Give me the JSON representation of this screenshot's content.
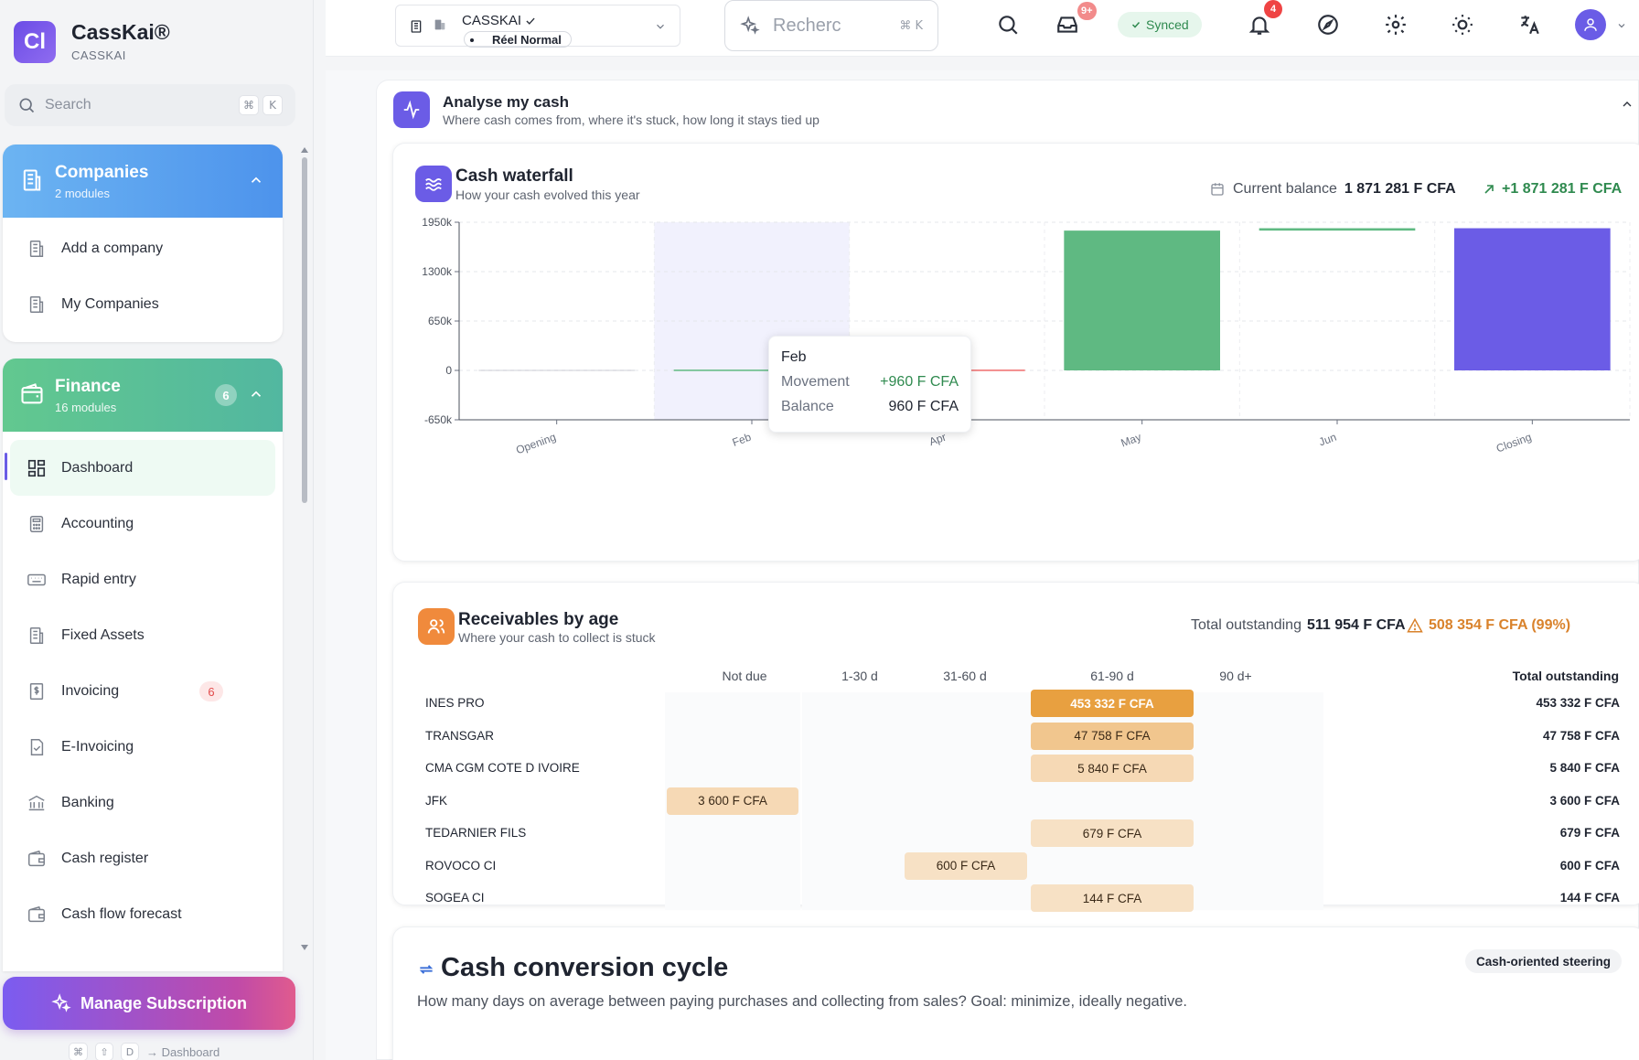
{
  "app": {
    "logo_text": "Cl",
    "title": "CassKai®",
    "subtitle": "CASSKAI"
  },
  "sidebar": {
    "search_placeholder": "Search",
    "search_keys": [
      "⌘",
      "K"
    ],
    "groups": [
      {
        "title": "Companies",
        "subtitle": "2 modules",
        "color": "#5aa7f0",
        "items": [
          {
            "label": "Add a company",
            "icon": "building-icon"
          },
          {
            "label": "My Companies",
            "icon": "building-icon"
          }
        ]
      },
      {
        "title": "Finance",
        "subtitle": "16 modules",
        "count": "6",
        "color": "#4fbf8a",
        "items": [
          {
            "label": "Dashboard",
            "icon": "dashboard-icon",
            "active": true
          },
          {
            "label": "Accounting",
            "icon": "calculator-icon"
          },
          {
            "label": "Rapid entry",
            "icon": "keyboard-icon"
          },
          {
            "label": "Fixed Assets",
            "icon": "building-icon"
          },
          {
            "label": "Invoicing",
            "icon": "invoice-icon",
            "badge": "6"
          },
          {
            "label": "E-Invoicing",
            "icon": "document-check-icon"
          },
          {
            "label": "Banking",
            "icon": "bank-icon"
          },
          {
            "label": "Cash register",
            "icon": "wallet-icon"
          },
          {
            "label": "Cash flow forecast",
            "icon": "wallet-icon"
          }
        ]
      }
    ],
    "manage_subscription": "Manage Subscription",
    "shortcut_keys": [
      "⌘",
      "⇧",
      "D"
    ],
    "shortcut_target": "→ Dashboard"
  },
  "topbar": {
    "company_name": "CASSKAI",
    "company_mode": "Réel Normal",
    "search_placeholder": "Recherc",
    "search_keys": [
      "⌘",
      "K"
    ],
    "inbox_badge": "9+",
    "synced_label": "Synced",
    "notifications_badge": "4"
  },
  "analyse": {
    "title": "Analyse my cash",
    "subtitle": "Where cash comes from, where it's stuck, how long it stays tied up"
  },
  "waterfall": {
    "title": "Cash waterfall",
    "subtitle": "How your cash evolved this year",
    "balance_label": "Current balance",
    "balance_value": "1 871 281 F CFA",
    "delta_value": "+1 871 281 F CFA",
    "tooltip": {
      "title": "Feb",
      "movement_label": "Movement",
      "movement_value": "+960 F CFA",
      "balance_label": "Balance",
      "balance_value": "960 F CFA"
    },
    "colors": {
      "positive": "#5fb982",
      "negative": "#ef6b6b",
      "closing": "#6b5ce6",
      "highlight": "#f1f1fd"
    }
  },
  "chart_data": {
    "type": "bar",
    "subtype": "waterfall",
    "title": "Cash waterfall",
    "categories": [
      "Opening",
      "Feb",
      "Apr",
      "May",
      "Jun",
      "Closing"
    ],
    "bars": [
      {
        "category": "Opening",
        "start": 0,
        "end": 0
      },
      {
        "category": "Feb",
        "start": 0,
        "end": 960
      },
      {
        "category": "Apr",
        "start": 960,
        "end": 0
      },
      {
        "category": "May",
        "start": 0,
        "end": 1840000
      },
      {
        "category": "Jun",
        "start": 1840000,
        "end": 1871281
      },
      {
        "category": "Closing",
        "start": 0,
        "end": 1871281
      }
    ],
    "ytick_labels": [
      "1950k",
      "1300k",
      "650k",
      "0",
      "-650k"
    ],
    "ytick_values": [
      1950000,
      1300000,
      650000,
      0,
      -650000
    ],
    "ylim": [
      -650000,
      1950000
    ],
    "highlighted_category": "Feb",
    "grid": true
  },
  "receivables": {
    "title": "Receivables by age",
    "subtitle": "Where your cash to collect is stuck",
    "total_label": "Total outstanding",
    "total_value": "511 954 F CFA",
    "warning_value": "508 354 F CFA (99%)",
    "columns": [
      "Not due",
      "1-30 d",
      "31-60 d",
      "61-90 d",
      "90 d+",
      "Total outstanding"
    ],
    "rows": [
      {
        "name": "INES PRO",
        "bucket": 3,
        "amount": "453 332 F CFA",
        "total": "453 332 F CFA",
        "intensity": 1.0
      },
      {
        "name": "TRANSGAR",
        "bucket": 3,
        "amount": "47 758 F CFA",
        "total": "47 758 F CFA",
        "intensity": 0.5
      },
      {
        "name": "CMA CGM COTE D IVOIRE",
        "bucket": 3,
        "amount": "5 840 F CFA",
        "total": "5 840 F CFA",
        "intensity": 0.25
      },
      {
        "name": "JFK",
        "bucket": 0,
        "amount": "3 600 F CFA",
        "total": "3 600 F CFA",
        "intensity": 0.25
      },
      {
        "name": "TEDARNIER FILS",
        "bucket": 3,
        "amount": "679 F CFA",
        "total": "679 F CFA",
        "intensity": 0.15
      },
      {
        "name": "ROVOCO CI",
        "bucket": 2,
        "amount": "600 F CFA",
        "total": "600 F CFA",
        "intensity": 0.15
      },
      {
        "name": "SOGEA CI",
        "bucket": 3,
        "amount": "144 F CFA",
        "total": "144 F CFA",
        "intensity": 0.15
      }
    ]
  },
  "ccc": {
    "title": "Cash conversion cycle",
    "subtitle": "How many days on average between paying purchases and collecting from sales? Goal: minimize, ideally negative.",
    "tag": "Cash-oriented steering"
  }
}
